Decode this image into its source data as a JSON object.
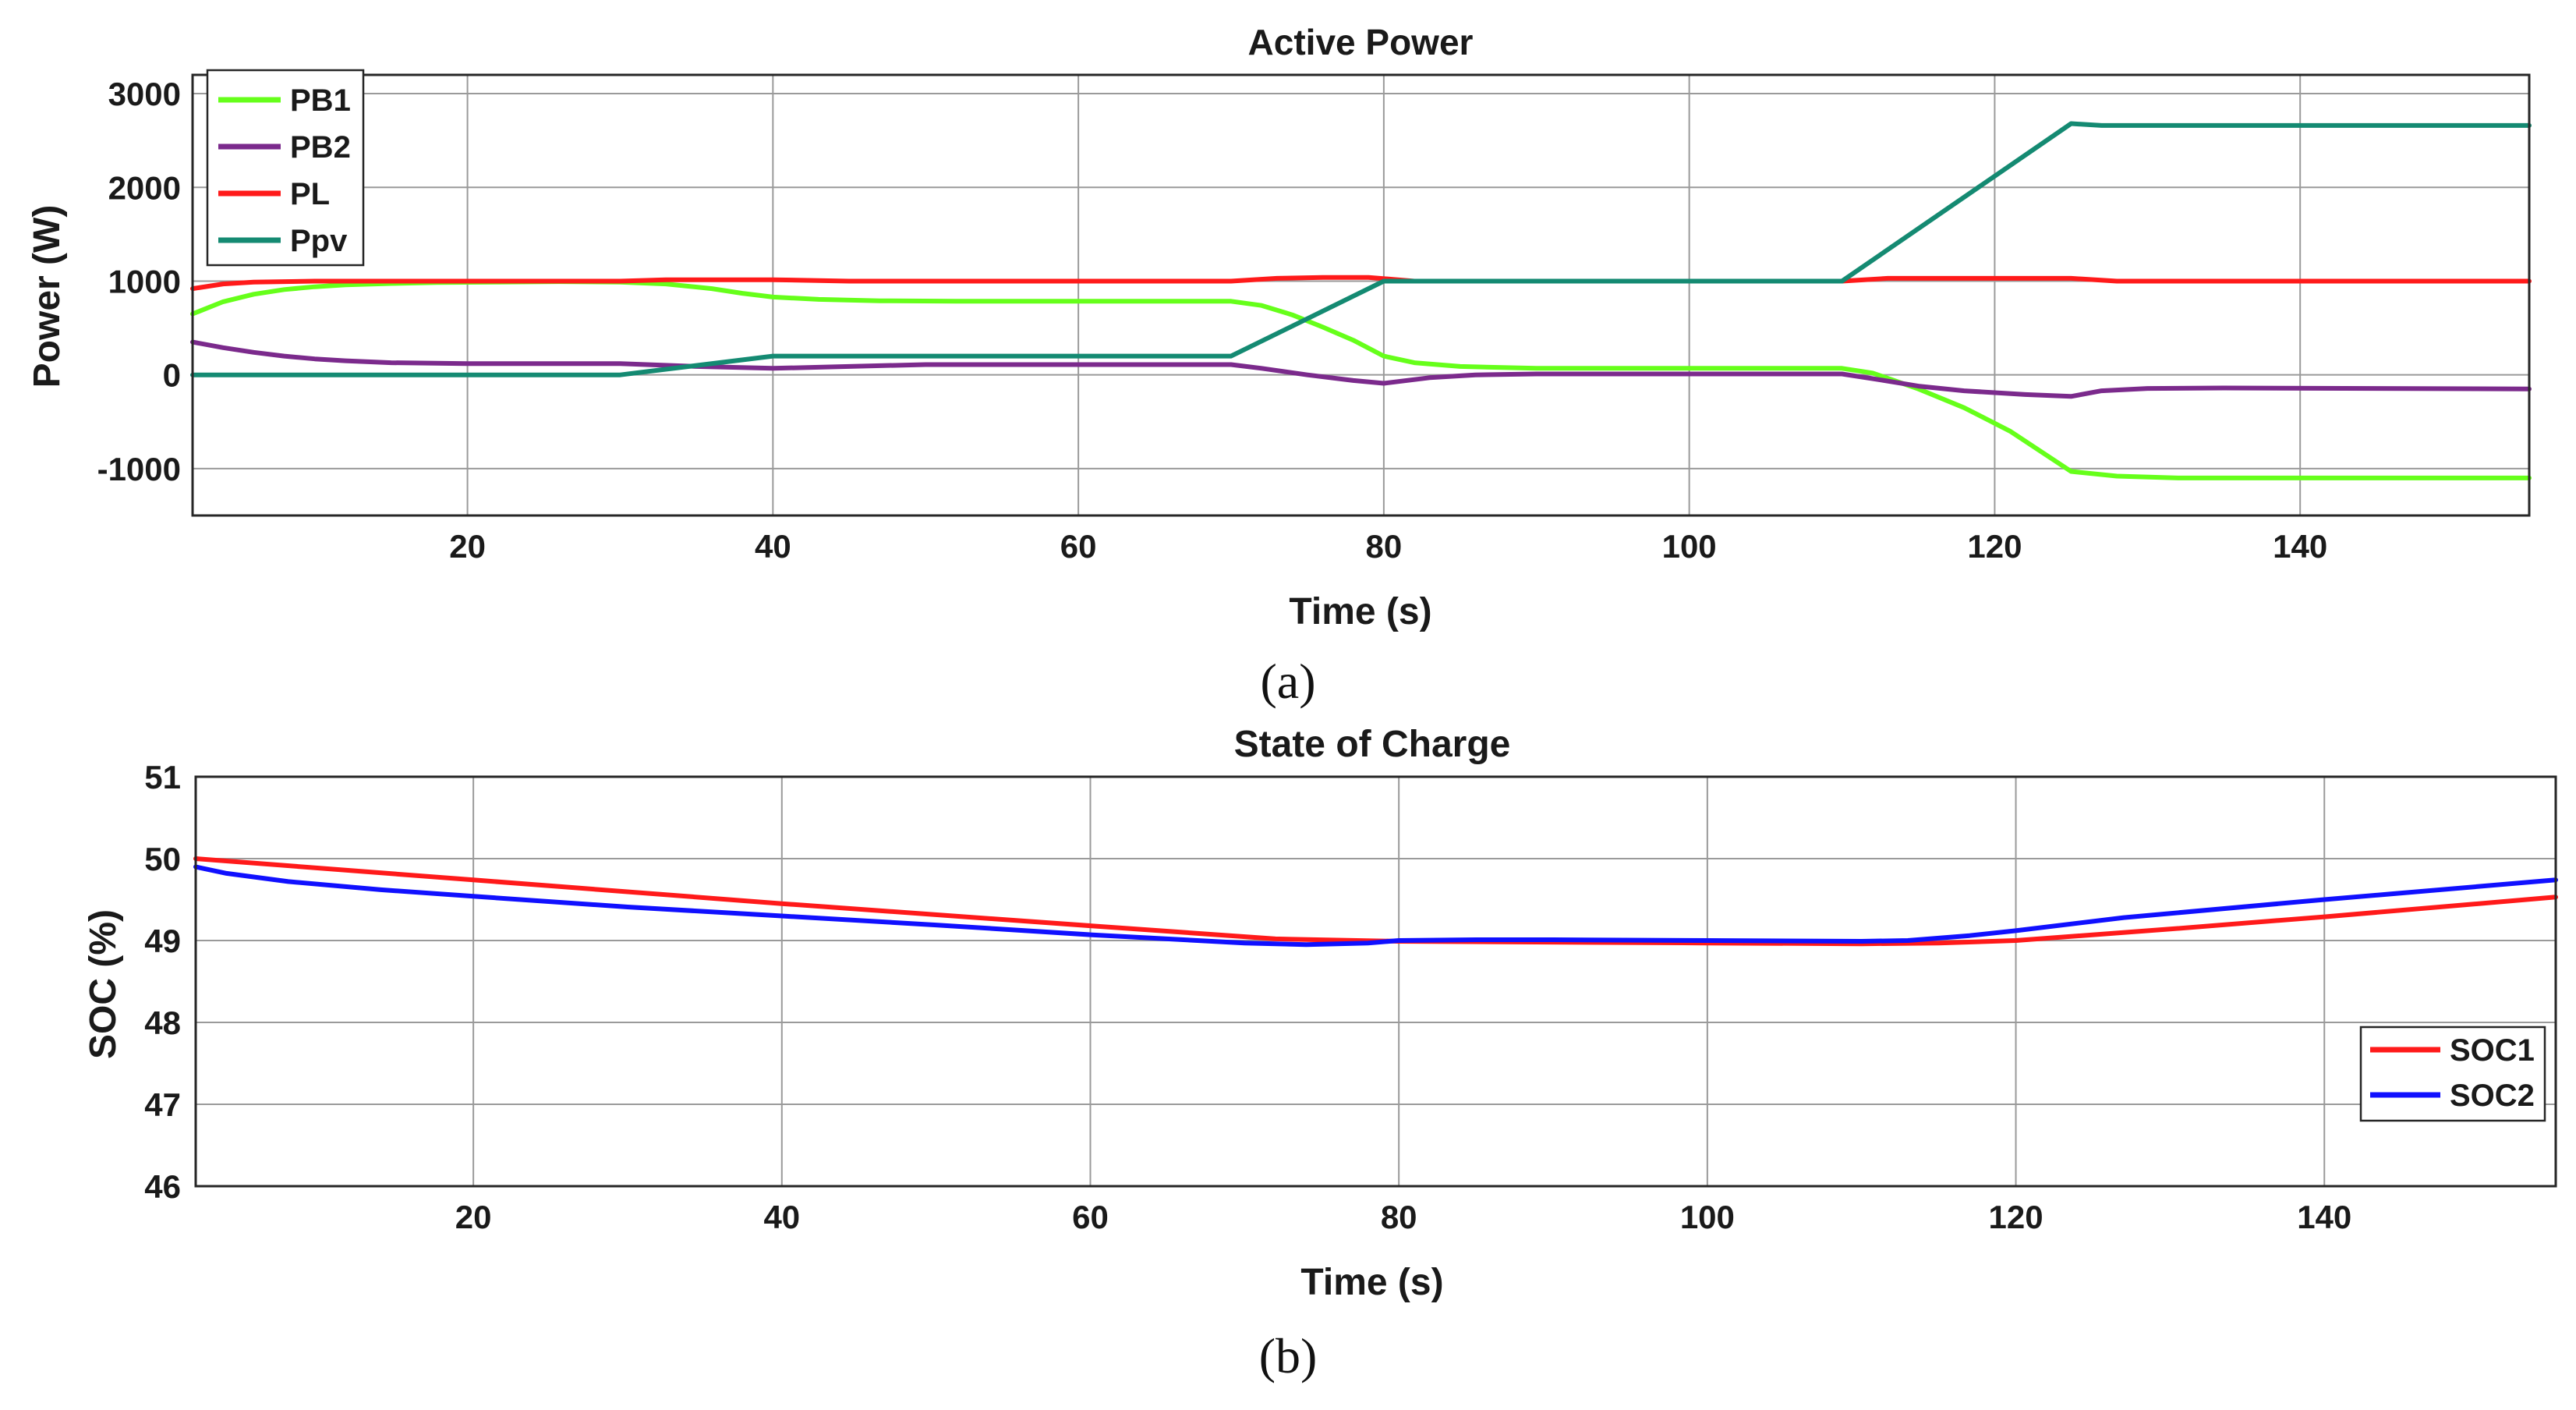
{
  "chart_data": [
    {
      "id": "a",
      "type": "line",
      "title": "Active Power",
      "xlabel": "Time (s)",
      "ylabel": "Power (W)",
      "xlim": [
        2,
        155
      ],
      "ylim": [
        -1500,
        3200
      ],
      "xticks": [
        20,
        40,
        60,
        80,
        100,
        120,
        140
      ],
      "yticks": [
        -1000,
        0,
        1000,
        2000,
        3000
      ],
      "grid": true,
      "legend_position": "top-left",
      "caption": "(a)",
      "series": [
        {
          "name": "PB1",
          "color": "#66ff1a",
          "x": [
            2,
            4,
            6,
            8,
            10,
            12,
            15,
            18,
            22,
            26,
            30,
            33,
            36,
            38,
            40,
            43,
            47,
            52,
            60,
            70,
            72,
            74,
            76,
            78,
            80,
            82,
            85,
            90,
            100,
            110,
            112,
            115,
            118,
            121,
            125,
            128,
            132,
            140,
            155
          ],
          "y": [
            650,
            780,
            860,
            910,
            940,
            960,
            975,
            985,
            990,
            995,
            990,
            970,
            920,
            870,
            830,
            805,
            790,
            785,
            785,
            785,
            740,
            640,
            510,
            370,
            200,
            130,
            90,
            70,
            70,
            70,
            20,
            -150,
            -350,
            -600,
            -1030,
            -1080,
            -1100,
            -1100,
            -1100
          ]
        },
        {
          "name": "PB2",
          "color": "#7b2a8c",
          "x": [
            2,
            4,
            6,
            8,
            10,
            12,
            15,
            20,
            25,
            30,
            35,
            40,
            45,
            50,
            60,
            70,
            72,
            75,
            78,
            80,
            83,
            86,
            90,
            100,
            110,
            112,
            115,
            118,
            122,
            125,
            127,
            130,
            135,
            155
          ],
          "y": [
            350,
            290,
            240,
            200,
            170,
            150,
            130,
            120,
            120,
            120,
            90,
            70,
            90,
            110,
            110,
            110,
            70,
            0,
            -60,
            -90,
            -30,
            0,
            10,
            10,
            10,
            -40,
            -120,
            -170,
            -210,
            -230,
            -170,
            -145,
            -140,
            -150
          ]
        },
        {
          "name": "PL",
          "color": "#ff1a1a",
          "x": [
            2,
            4,
            6,
            10,
            20,
            30,
            33,
            40,
            45,
            60,
            70,
            73,
            76,
            79,
            82,
            90,
            100,
            110,
            113,
            120,
            125,
            128,
            155
          ],
          "y": [
            920,
            970,
            990,
            1000,
            1000,
            1000,
            1015,
            1015,
            1000,
            1000,
            1000,
            1030,
            1040,
            1040,
            1000,
            1000,
            1000,
            1000,
            1030,
            1030,
            1030,
            1000,
            1000
          ]
        },
        {
          "name": "Ppv",
          "color": "#148a72",
          "x": [
            2,
            30,
            40,
            70,
            80,
            110,
            125,
            127,
            155
          ],
          "y": [
            0,
            0,
            200,
            200,
            1000,
            1000,
            2680,
            2660,
            2660
          ]
        }
      ]
    },
    {
      "id": "b",
      "type": "line",
      "title": "State of Charge",
      "xlabel": "Time (s)",
      "ylabel": "SOC (%)",
      "xlim": [
        2,
        155
      ],
      "ylim": [
        46,
        51
      ],
      "xticks": [
        20,
        40,
        60,
        80,
        100,
        120,
        140
      ],
      "yticks": [
        46,
        47,
        48,
        49,
        50,
        51
      ],
      "grid": true,
      "legend_position": "lower-right",
      "caption": "(b)",
      "series": [
        {
          "name": "SOC1",
          "color": "#ff1a1a",
          "x": [
            2,
            20,
            40,
            60,
            72,
            80,
            90,
            100,
            110,
            115,
            120,
            130,
            140,
            155
          ],
          "y": [
            50.0,
            49.74,
            49.45,
            49.18,
            49.02,
            48.99,
            48.98,
            48.97,
            48.96,
            48.97,
            49.0,
            49.14,
            49.29,
            49.53
          ]
        },
        {
          "name": "SOC2",
          "color": "#1010ff",
          "x": [
            2,
            4,
            8,
            14,
            20,
            30,
            40,
            50,
            60,
            70,
            74,
            78,
            80,
            85,
            90,
            100,
            110,
            113,
            117,
            120,
            127,
            140,
            155
          ],
          "y": [
            49.9,
            49.82,
            49.72,
            49.62,
            49.54,
            49.41,
            49.3,
            49.19,
            49.07,
            48.97,
            48.95,
            48.97,
            49.0,
            49.01,
            49.01,
            49.0,
            48.99,
            49.0,
            49.06,
            49.12,
            49.28,
            49.5,
            49.74
          ]
        }
      ]
    }
  ]
}
